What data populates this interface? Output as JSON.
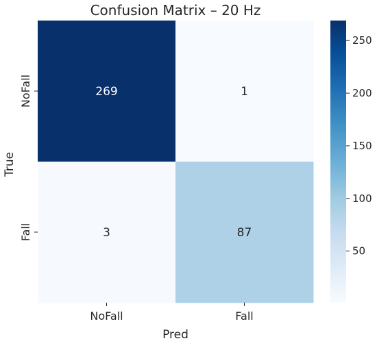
{
  "chart_data": {
    "type": "heatmap",
    "title": "Confusion Matrix – 20 Hz",
    "xlabel": "Pred",
    "ylabel": "True",
    "x_categories": [
      "NoFall",
      "Fall"
    ],
    "y_categories": [
      "NoFall",
      "Fall"
    ],
    "values": [
      [
        269,
        1
      ],
      [
        3,
        87
      ]
    ],
    "colorbar": {
      "min": 1,
      "max": 269,
      "ticks": [
        50,
        100,
        150,
        200,
        250
      ],
      "tick_labels": [
        "50",
        "100",
        "150",
        "200",
        "250"
      ]
    },
    "colormap": "Blues",
    "colormap_stops": [
      "#f7fbff",
      "#deebf7",
      "#c6dbef",
      "#9ecae1",
      "#6baed6",
      "#4292c6",
      "#2171b5",
      "#08519c",
      "#08306b"
    ],
    "light_text_color": "#ffffff",
    "dark_text_color": "#262626"
  }
}
